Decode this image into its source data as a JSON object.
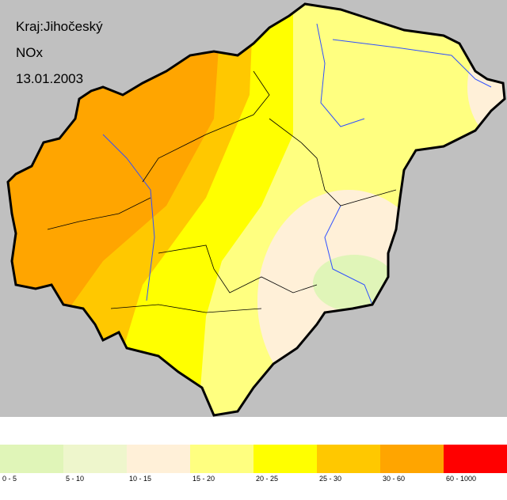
{
  "header": {
    "region": "Kraj:Jihočeský",
    "pollutant": "NOx",
    "date": "13.01.2003"
  },
  "legend": [
    {
      "label": "0 - 5",
      "color": "#e0f5b8"
    },
    {
      "label": "5 - 10",
      "color": "#eef6cc"
    },
    {
      "label": "10 - 15",
      "color": "#fff0d8"
    },
    {
      "label": "15 - 20",
      "color": "#ffff80"
    },
    {
      "label": "20 - 25",
      "color": "#ffff00"
    },
    {
      "label": "25 - 30",
      "color": "#ffc800"
    },
    {
      "label": "30 - 60",
      "color": "#ffa500"
    },
    {
      "label": "60 - 1000",
      "color": "#ff0000"
    }
  ]
}
